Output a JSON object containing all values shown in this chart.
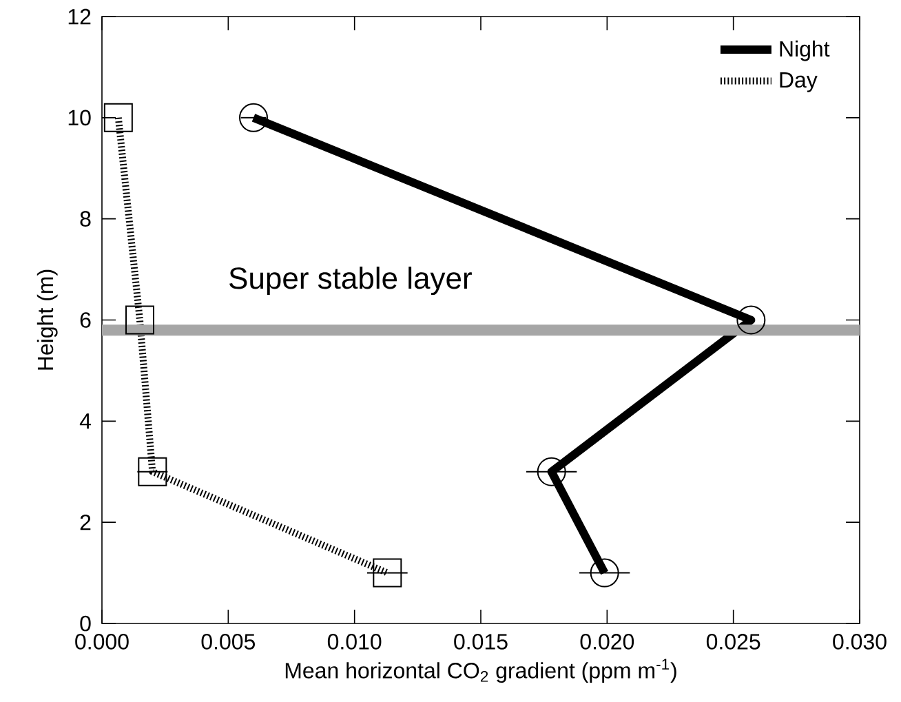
{
  "chart_data": {
    "type": "line",
    "xlabel": "Mean horizontal CO$_{2}$ gradient (ppm m$^{-1}$)",
    "ylabel": "Height (m)",
    "xlim": [
      0,
      0.03
    ],
    "ylim": [
      0,
      12
    ],
    "xticks": [
      {
        "value": 0,
        "label": "0.000"
      },
      {
        "value": 0.005,
        "label": "0.005"
      },
      {
        "value": 0.01,
        "label": "0.010"
      },
      {
        "value": 0.015,
        "label": "0.015"
      },
      {
        "value": 0.02,
        "label": "0.020"
      },
      {
        "value": 0.025,
        "label": "0.025"
      },
      {
        "value": 0.03,
        "label": "0.030"
      }
    ],
    "yticks": [
      0,
      2,
      4,
      6,
      8,
      10,
      12
    ],
    "grid": false,
    "legend": "top right",
    "series": [
      {
        "name": "Night",
        "color": "#000000",
        "line_style": "solid",
        "marker": "circle",
        "x": [
          0.006,
          0.0257,
          0.0178,
          0.0199
        ],
        "values": [
          10,
          6,
          3,
          1
        ],
        "xerrors": [
          0.0005,
          null,
          0.001,
          0.001
        ]
      },
      {
        "name": "Day",
        "color": "#000000",
        "line_style": "dotted",
        "marker": "square",
        "x": [
          0.00065,
          0.0015,
          0.002,
          0.0113
        ],
        "values": [
          10,
          6,
          3,
          1
        ],
        "xerrors": [
          null,
          null,
          0.0006,
          0.0008
        ]
      }
    ],
    "ref_lines": [
      {
        "axis": "y",
        "value": 5.8,
        "label": "Super stable layer",
        "color": "#a6a6a6"
      }
    ]
  }
}
